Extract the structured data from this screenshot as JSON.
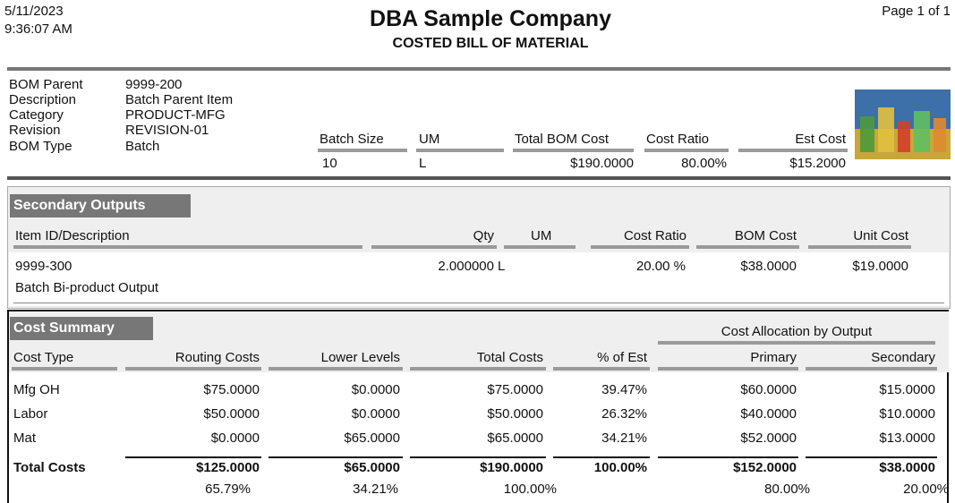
{
  "header": {
    "date": "5/11/2023",
    "time": "9:36:07 AM",
    "title": "DBA Sample Company",
    "subtitle": "COSTED BILL OF MATERIAL",
    "page": "Page 1 of 1"
  },
  "bom": {
    "fields": [
      {
        "label": "BOM Parent",
        "value": "9999-200"
      },
      {
        "label": "Description",
        "value": "Batch Parent Item"
      },
      {
        "label": "Category",
        "value": "PRODUCT-MFG"
      },
      {
        "label": "Revision",
        "value": "REVISION-01"
      },
      {
        "label": "BOM Type",
        "value": "Batch"
      }
    ],
    "columns": [
      {
        "label": "Batch Size",
        "value": "10"
      },
      {
        "label": "UM",
        "value": "L"
      },
      {
        "label": "Total BOM Cost",
        "value": "$190.0000"
      },
      {
        "label": "Cost Ratio",
        "value": "80.00%"
      },
      {
        "label": "Est Cost",
        "value": "$15.2000"
      }
    ]
  },
  "secondary_outputs": {
    "title": "Secondary Outputs",
    "columns": [
      "Item ID/Description",
      "Qty",
      "UM",
      "Cost Ratio",
      "BOM Cost",
      "Unit Cost"
    ],
    "rows": [
      {
        "item_id": "9999-300",
        "description": "Batch Bi-product Output",
        "qty": "2.000000",
        "um": "L",
        "cost_ratio": "20.00 %",
        "bom_cost": "$38.0000",
        "unit_cost": "$19.0000"
      }
    ]
  },
  "cost_summary": {
    "title": "Cost Summary",
    "group_header": "Cost Allocation by Output",
    "columns": [
      "Cost Type",
      "Routing Costs",
      "Lower Levels",
      "Total Costs",
      "% of Est",
      "Primary",
      "Secondary"
    ],
    "rows": [
      [
        "Mfg OH",
        "$75.0000",
        "$0.0000",
        "$75.0000",
        "39.47%",
        "$60.0000",
        "$15.0000"
      ],
      [
        "Labor",
        "$50.0000",
        "$0.0000",
        "$50.0000",
        "26.32%",
        "$40.0000",
        "$10.0000"
      ],
      [
        "Mat",
        "$0.0000",
        "$65.0000",
        "$65.0000",
        "34.21%",
        "$52.0000",
        "$13.0000"
      ]
    ],
    "totals": [
      "Total Costs",
      "$125.0000",
      "$65.0000",
      "$190.0000",
      "100.00%",
      "$152.0000",
      "$38.0000"
    ],
    "total_percents": [
      "65.79%",
      "34.21%",
      "100.00%",
      "80.00%",
      "20.00%"
    ]
  }
}
